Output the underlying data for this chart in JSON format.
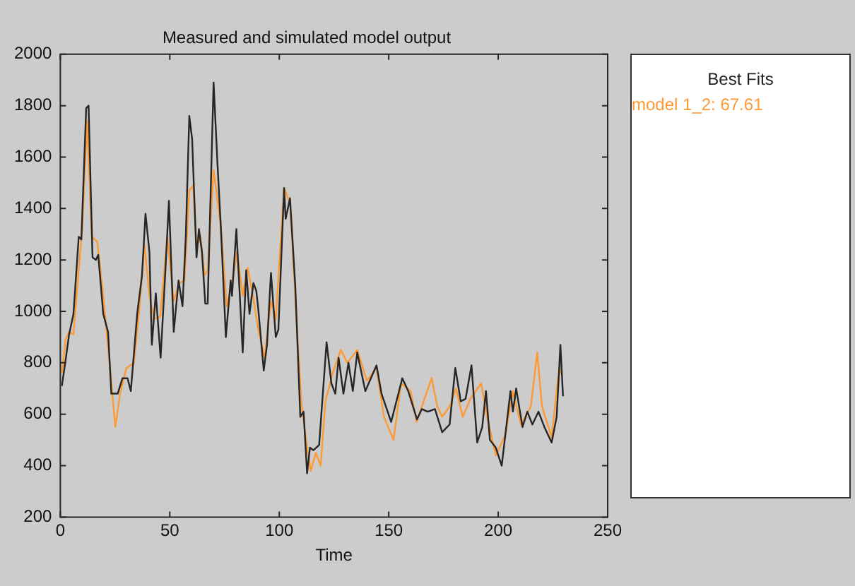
{
  "chart_data": {
    "type": "line",
    "title": "Measured and simulated model output",
    "xlabel": "Time",
    "legend_title": "Best Fits",
    "legend": "right",
    "grid": false,
    "marker": "none",
    "line_style": "solid",
    "xlim": [
      0,
      250
    ],
    "xticks": [
      0,
      50,
      100,
      150,
      200,
      250
    ],
    "ylim": [
      200,
      2000
    ],
    "yticks": [
      200,
      400,
      600,
      800,
      1000,
      1200,
      1400,
      1600,
      1800,
      2000
    ],
    "series": [
      {
        "color": "#262626",
        "x": [
          0.7,
          2.4,
          4,
          6,
          8.4,
          9.6,
          11.8,
          12.9,
          14.7,
          16.2,
          17.3,
          19.6,
          21.8,
          23.3,
          26.2,
          28.4,
          30.7,
          32.2,
          35.1,
          37.3,
          38.9,
          40.7,
          41.8,
          43.6,
          45.8,
          48,
          49.6,
          51.8,
          54,
          55.8,
          57.3,
          58.9,
          60.2,
          62.2,
          63.3,
          64.7,
          66.2,
          67.3,
          70,
          71.8,
          73.3,
          75.6,
          77.8,
          78.4,
          80.4,
          83.3,
          84.9,
          86.4,
          88.2,
          89.5,
          90.4,
          92.9,
          94.4,
          96.2,
          98.4,
          99.6,
          102.2,
          102.9,
          104.9,
          107.3,
          109.6,
          111.1,
          112.7,
          114,
          115.6,
          118.2,
          121.6,
          123.8,
          125.6,
          127.1,
          129.3,
          131.6,
          133.6,
          135.6,
          139.3,
          144.4,
          146.7,
          151.1,
          156.2,
          158.9,
          162.9,
          165.1,
          167.8,
          171.1,
          174.4,
          177.8,
          180.4,
          182.9,
          185.1,
          187.8,
          190.4,
          192.7,
          194.4,
          196.2,
          198.9,
          201.6,
          205.6,
          206.7,
          208.2,
          211.1,
          213.3,
          215.6,
          218.4,
          221.1,
          224.4,
          226.7,
          228.4,
          229.6
        ],
        "values": [
          710,
          810,
          910,
          990,
          1290,
          1280,
          1790,
          1800,
          1210,
          1200,
          1220,
          990,
          920,
          680,
          680,
          740,
          740,
          690,
          990,
          1140,
          1380,
          1230,
          870,
          1070,
          820,
          1160,
          1430,
          920,
          1120,
          1020,
          1290,
          1760,
          1670,
          1210,
          1320,
          1230,
          1030,
          1030,
          1890,
          1570,
          1330,
          900,
          1120,
          1060,
          1320,
          840,
          1160,
          990,
          1110,
          1080,
          1010,
          770,
          870,
          1150,
          900,
          930,
          1480,
          1360,
          1440,
          1100,
          590,
          610,
          370,
          470,
          460,
          480,
          880,
          720,
          680,
          820,
          680,
          800,
          690,
          840,
          690,
          790,
          680,
          570,
          740,
          690,
          580,
          620,
          610,
          620,
          530,
          560,
          780,
          650,
          660,
          790,
          490,
          550,
          690,
          500,
          470,
          400,
          690,
          610,
          700,
          550,
          610,
          560,
          610,
          550,
          490,
          590,
          870,
          670
        ]
      },
      {
        "name": "model 1_2: 67.61",
        "color": "#ff9933",
        "x": [
          0.7,
          2.4,
          4,
          6,
          8.4,
          10,
          12.2,
          14.4,
          16.9,
          19.6,
          22.9,
          25.1,
          27.3,
          30.2,
          33.6,
          36.2,
          38.4,
          40.7,
          42.9,
          45.6,
          48.9,
          51.8,
          54.4,
          56.7,
          58.9,
          60.7,
          62.2,
          64,
          65.8,
          67.3,
          70,
          73.3,
          76,
          78.4,
          80.7,
          83.3,
          85.6,
          88.2,
          90.4,
          93.3,
          96.2,
          98.4,
          102.2,
          104.9,
          107.3,
          110,
          112.7,
          114.4,
          116.7,
          118.9,
          121.1,
          124.4,
          128.1,
          131.1,
          135.6,
          140,
          144.4,
          147.8,
          152.2,
          155.6,
          160,
          162.7,
          165.1,
          169.6,
          172.2,
          174.4,
          177.8,
          180.7,
          183.8,
          187.3,
          192.2,
          194.9,
          198.9,
          203.3,
          206.7,
          210.4,
          214.9,
          217.8,
          220,
          224.4,
          227.3,
          229.3
        ],
        "values": [
          760,
          890,
          920,
          910,
          1160,
          1320,
          1740,
          1290,
          1270,
          1060,
          760,
          550,
          680,
          780,
          800,
          1020,
          1260,
          1060,
          970,
          980,
          1290,
          1040,
          1110,
          1120,
          1470,
          1490,
          1250,
          1290,
          1140,
          1160,
          1550,
          1330,
          1020,
          1110,
          1230,
          1060,
          1170,
          1050,
          930,
          820,
          1040,
          970,
          1480,
          1420,
          1060,
          650,
          470,
          380,
          450,
          400,
          650,
          760,
          850,
          800,
          850,
          730,
          780,
          590,
          500,
          720,
          690,
          570,
          630,
          740,
          630,
          590,
          630,
          700,
          590,
          660,
          720,
          590,
          440,
          520,
          690,
          560,
          630,
          840,
          630,
          510,
          740,
          790
        ]
      }
    ]
  }
}
